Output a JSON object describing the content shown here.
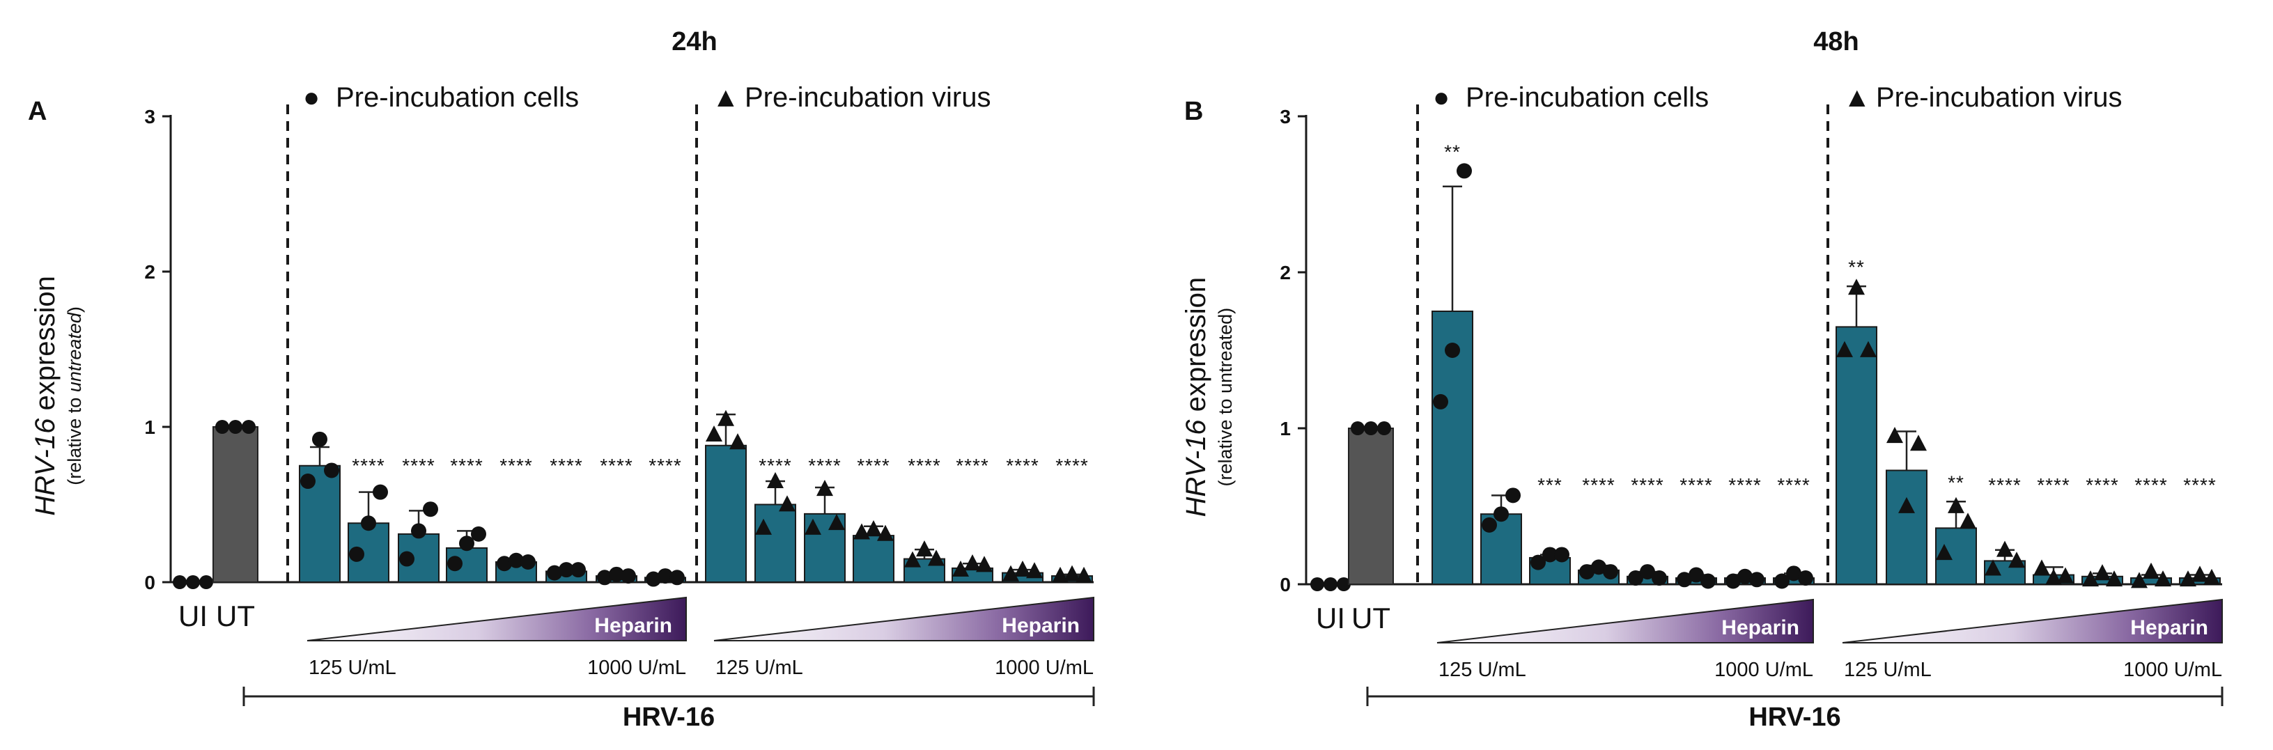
{
  "colors": {
    "treated_bar": "#1e6b80",
    "ut_bar": "#555555",
    "axis": "#1a1a1a",
    "points": "#111111",
    "heparin_dark": "#3d1a5a",
    "heparin_light": "#ffffff"
  },
  "chart_data": [
    {
      "type": "bar",
      "panel_letter": "A",
      "title": "24h",
      "ylabel_italic": "HRV-16",
      "ylabel_rest": " expression",
      "ylabel_sub_prefix": "(relative to ",
      "ylabel_sub_italic": "untreated",
      "ylabel_sub_suffix": ")",
      "ylabel_sub_all_italic": false,
      "ylim": [
        0,
        3
      ],
      "yticks": [
        "0",
        "1",
        "2",
        "3"
      ],
      "control_labels": [
        "UI",
        "UT"
      ],
      "controls": [
        {
          "name": "UI",
          "value": 0,
          "points": [
            0,
            0,
            0
          ]
        },
        {
          "name": "UT",
          "value": 1,
          "points": [
            1,
            1,
            1
          ]
        }
      ],
      "groups": [
        {
          "label": "Pre-incubation cells",
          "marker": "circle",
          "marker_glyph": "●",
          "values": [
            0.75,
            0.38,
            0.31,
            0.22,
            0.13,
            0.07,
            0.04,
            0.03
          ],
          "errors": [
            0.12,
            0.2,
            0.15,
            0.11,
            0.02,
            0.02,
            0.01,
            0.01
          ],
          "points": [
            [
              0.65,
              0.92,
              0.72
            ],
            [
              0.18,
              0.38,
              0.58
            ],
            [
              0.15,
              0.33,
              0.47
            ],
            [
              0.12,
              0.25,
              0.31
            ],
            [
              0.12,
              0.14,
              0.13
            ],
            [
              0.06,
              0.08,
              0.08
            ],
            [
              0.03,
              0.05,
              0.04
            ],
            [
              0.02,
              0.04,
              0.03
            ]
          ],
          "significance": [
            "",
            "****",
            "****",
            "****",
            "****",
            "****",
            "****",
            "****"
          ]
        },
        {
          "label": "Pre-incubation virus",
          "marker": "triangle",
          "marker_glyph": "▲",
          "values": [
            0.88,
            0.5,
            0.44,
            0.3,
            0.15,
            0.09,
            0.06,
            0.04
          ],
          "errors": [
            0.2,
            0.15,
            0.17,
            0.06,
            0.06,
            0.03,
            0.02,
            0.01
          ],
          "points": [
            [
              0.95,
              1.05,
              0.9
            ],
            [
              0.35,
              0.65,
              0.5
            ],
            [
              0.35,
              0.6,
              0.38
            ],
            [
              0.32,
              0.34,
              0.31
            ],
            [
              0.14,
              0.21,
              0.15
            ],
            [
              0.08,
              0.12,
              0.11
            ],
            [
              0.05,
              0.08,
              0.07
            ],
            [
              0.04,
              0.05,
              0.04
            ]
          ],
          "significance": [
            "",
            "****",
            "****",
            "****",
            "****",
            "****",
            "****",
            "****"
          ]
        }
      ],
      "heparin": {
        "label": "Heparin",
        "low": "125 U/mL",
        "high": "1000 U/mL"
      },
      "virus_label": "HRV-16"
    },
    {
      "type": "bar",
      "panel_letter": "B",
      "title": "48h",
      "ylabel_italic": "HRV-16",
      "ylabel_rest": " expression",
      "ylabel_sub_prefix": "(relative to untreated)",
      "ylabel_sub_italic": "",
      "ylabel_sub_suffix": "",
      "ylabel_sub_all_italic": false,
      "ylim": [
        0,
        3
      ],
      "yticks": [
        "0",
        "1",
        "2",
        "3"
      ],
      "control_labels": [
        "UI",
        "UT"
      ],
      "controls": [
        {
          "name": "UI",
          "value": 0,
          "points": [
            0,
            0,
            0
          ]
        },
        {
          "name": "UT",
          "value": 1,
          "points": [
            1,
            1,
            1
          ]
        }
      ],
      "groups": [
        {
          "label": "Pre-incubation cells",
          "marker": "circle",
          "marker_glyph": "●",
          "values": [
            1.75,
            0.45,
            0.17,
            0.09,
            0.05,
            0.04,
            0.04,
            0.04
          ],
          "errors": [
            0.8,
            0.12,
            0.02,
            0.03,
            0.03,
            0.02,
            0.02,
            0.03
          ],
          "points": [
            [
              1.17,
              1.5,
              2.65
            ],
            [
              0.38,
              0.45,
              0.57
            ],
            [
              0.14,
              0.19,
              0.19
            ],
            [
              0.08,
              0.11,
              0.08
            ],
            [
              0.04,
              0.08,
              0.04
            ],
            [
              0.03,
              0.06,
              0.02
            ],
            [
              0.02,
              0.05,
              0.03
            ],
            [
              0.02,
              0.07,
              0.04
            ]
          ],
          "significance": [
            "**",
            "",
            "***",
            "****",
            "****",
            "****",
            "****",
            "****"
          ]
        },
        {
          "label": "Pre-incubation virus",
          "marker": "triangle",
          "marker_glyph": "▲",
          "values": [
            1.65,
            0.73,
            0.36,
            0.15,
            0.06,
            0.05,
            0.04,
            0.04
          ],
          "errors": [
            0.26,
            0.25,
            0.17,
            0.07,
            0.05,
            0.02,
            0.02,
            0.02
          ],
          "points": [
            [
              1.5,
              1.9,
              1.5
            ],
            [
              0.95,
              0.5,
              0.9
            ],
            [
              0.2,
              0.5,
              0.4
            ],
            [
              0.1,
              0.22,
              0.15
            ],
            [
              0.1,
              0.04,
              0.05
            ],
            [
              0.03,
              0.07,
              0.03
            ],
            [
              0.02,
              0.08,
              0.03
            ],
            [
              0.03,
              0.06,
              0.04
            ]
          ],
          "significance": [
            "**",
            "",
            "**",
            "****",
            "****",
            "****",
            "****",
            "****"
          ]
        }
      ],
      "heparin": {
        "label": "Heparin",
        "low": "125 U/mL",
        "high": "1000 U/mL"
      },
      "virus_label": "HRV-16"
    }
  ]
}
